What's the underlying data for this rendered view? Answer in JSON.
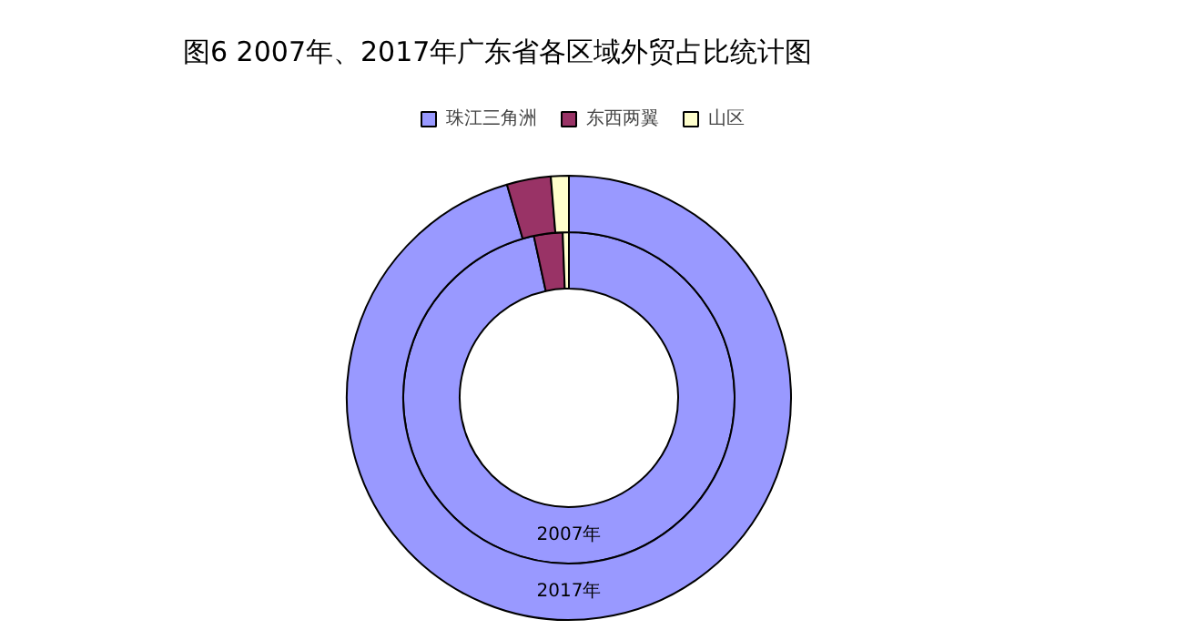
{
  "chart_data": {
    "type": "donut",
    "title": "图6 2007年、2017年广东省各区域外贸占比统计图",
    "categories": [
      "珠江三角洲",
      "东西两翼",
      "山区"
    ],
    "colors": [
      "#9999ff",
      "#993366",
      "#ffffcc"
    ],
    "series": [
      {
        "name": "2007年",
        "values": [
          96.6,
          2.8,
          0.6
        ]
      },
      {
        "name": "2017年",
        "values": [
          95.5,
          3.2,
          1.3
        ]
      }
    ],
    "legend": "top"
  }
}
